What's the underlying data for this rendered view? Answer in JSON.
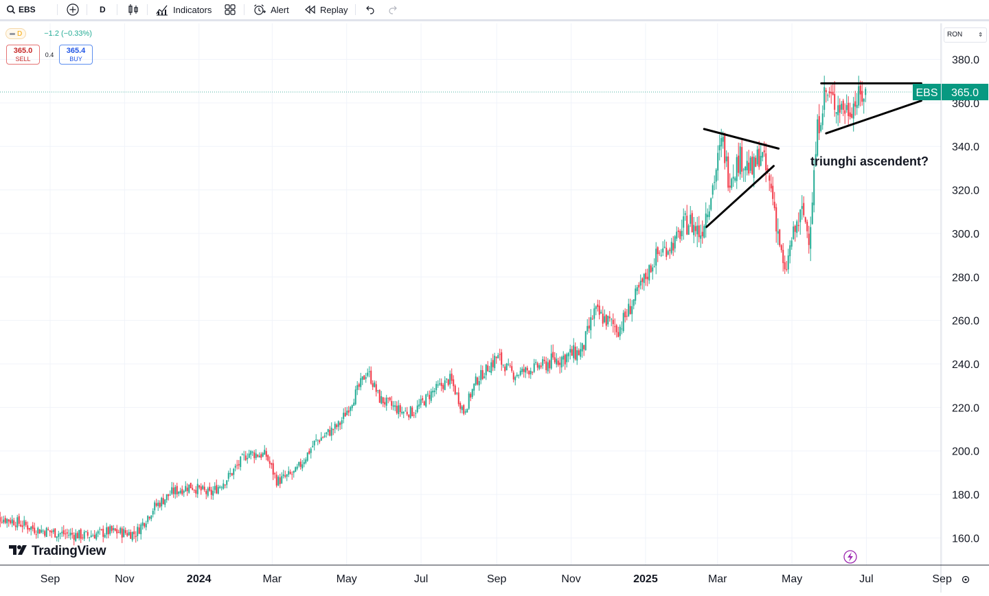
{
  "toolbar": {
    "symbol": "EBS",
    "interval": "D",
    "indicators_label": "Indicators",
    "alert_label": "Alert",
    "replay_label": "Replay"
  },
  "legend": {
    "interval_badge": "D",
    "change": "−1.2 (−0.33%)",
    "sell_price": "365.0",
    "sell_label": "SELL",
    "spread": "0.4",
    "buy_price": "365.4",
    "buy_label": "BUY"
  },
  "currency": "RON",
  "price_tag": {
    "symbol": "EBS",
    "price": "365.0"
  },
  "annotation": "triunghi ascendent?",
  "watermark": "TradingView",
  "colors": {
    "up": "#22ab94",
    "down": "#f23645",
    "accent": "#089981",
    "purple": "#9c27b0"
  },
  "chart_data": {
    "type": "candlestick",
    "y_ticks": [
      "380.0",
      "360.0",
      "340.0",
      "320.0",
      "300.0",
      "280.0",
      "260.0",
      "240.0",
      "220.0",
      "200.0",
      "180.0",
      "160.0"
    ],
    "ylim": [
      150.0,
      390.0
    ],
    "x_ticks": [
      {
        "label": "Sep",
        "bold": false
      },
      {
        "label": "Nov",
        "bold": false
      },
      {
        "label": "2024",
        "bold": true
      },
      {
        "label": "Mar",
        "bold": false
      },
      {
        "label": "May",
        "bold": false
      },
      {
        "label": "Jul",
        "bold": false
      },
      {
        "label": "Sep",
        "bold": false
      },
      {
        "label": "Nov",
        "bold": false
      },
      {
        "label": "2025",
        "bold": true
      },
      {
        "label": "Mar",
        "bold": false
      },
      {
        "label": "May",
        "bold": false
      },
      {
        "label": "Jul",
        "bold": false
      },
      {
        "label": "Sep",
        "bold": false
      }
    ],
    "last_price": 365.0,
    "close_path": [
      [
        "2023-07-15",
        170
      ],
      [
        "2023-08-01",
        168
      ],
      [
        "2023-08-20",
        164
      ],
      [
        "2023-09-10",
        162
      ],
      [
        "2023-10-01",
        161
      ],
      [
        "2023-10-20",
        163
      ],
      [
        "2023-11-10",
        162
      ],
      [
        "2023-11-25",
        174
      ],
      [
        "2023-12-10",
        181
      ],
      [
        "2023-12-25",
        184
      ],
      [
        "2024-01-10",
        180
      ],
      [
        "2024-01-25",
        188
      ],
      [
        "2024-02-10",
        199
      ],
      [
        "2024-02-25",
        198
      ],
      [
        "2024-03-05",
        186
      ],
      [
        "2024-03-20",
        190
      ],
      [
        "2024-04-05",
        204
      ],
      [
        "2024-04-25",
        212
      ],
      [
        "2024-05-10",
        228
      ],
      [
        "2024-05-18",
        237
      ],
      [
        "2024-05-28",
        224
      ],
      [
        "2024-06-15",
        218
      ],
      [
        "2024-06-25",
        218
      ],
      [
        "2024-07-10",
        227
      ],
      [
        "2024-07-25",
        233
      ],
      [
        "2024-08-05",
        218
      ],
      [
        "2024-08-15",
        232
      ],
      [
        "2024-09-01",
        243
      ],
      [
        "2024-09-15",
        235
      ],
      [
        "2024-10-01",
        238
      ],
      [
        "2024-10-20",
        242
      ],
      [
        "2024-11-10",
        246
      ],
      [
        "2024-11-20",
        264
      ],
      [
        "2024-12-10",
        256
      ],
      [
        "2024-12-25",
        272
      ],
      [
        "2025-01-10",
        290
      ],
      [
        "2025-01-25",
        296
      ],
      [
        "2025-02-05",
        306
      ],
      [
        "2025-02-15",
        300
      ],
      [
        "2025-02-25",
        322
      ],
      [
        "2025-03-05",
        343
      ],
      [
        "2025-03-10",
        326
      ],
      [
        "2025-03-20",
        335
      ],
      [
        "2025-03-30",
        328
      ],
      [
        "2025-04-05",
        338
      ],
      [
        "2025-04-15",
        318
      ],
      [
        "2025-04-25",
        280
      ],
      [
        "2025-05-01",
        298
      ],
      [
        "2025-05-10",
        310
      ],
      [
        "2025-05-15",
        298
      ],
      [
        "2025-05-22",
        348
      ],
      [
        "2025-05-28",
        365
      ],
      [
        "2025-06-05",
        360
      ],
      [
        "2025-06-15",
        357
      ],
      [
        "2025-06-25",
        362
      ],
      [
        "2025-07-01",
        365
      ]
    ],
    "trendlines": [
      {
        "from": [
          "2025-02-18",
          348
        ],
        "to": [
          "2025-04-20",
          339
        ]
      },
      {
        "from": [
          "2025-02-20",
          303
        ],
        "to": [
          "2025-04-16",
          331
        ]
      },
      {
        "from": [
          "2025-05-25",
          369
        ],
        "to": [
          "2025-08-15",
          369
        ]
      },
      {
        "from": [
          "2025-05-29",
          346
        ],
        "to": [
          "2025-08-15",
          361
        ]
      }
    ]
  }
}
